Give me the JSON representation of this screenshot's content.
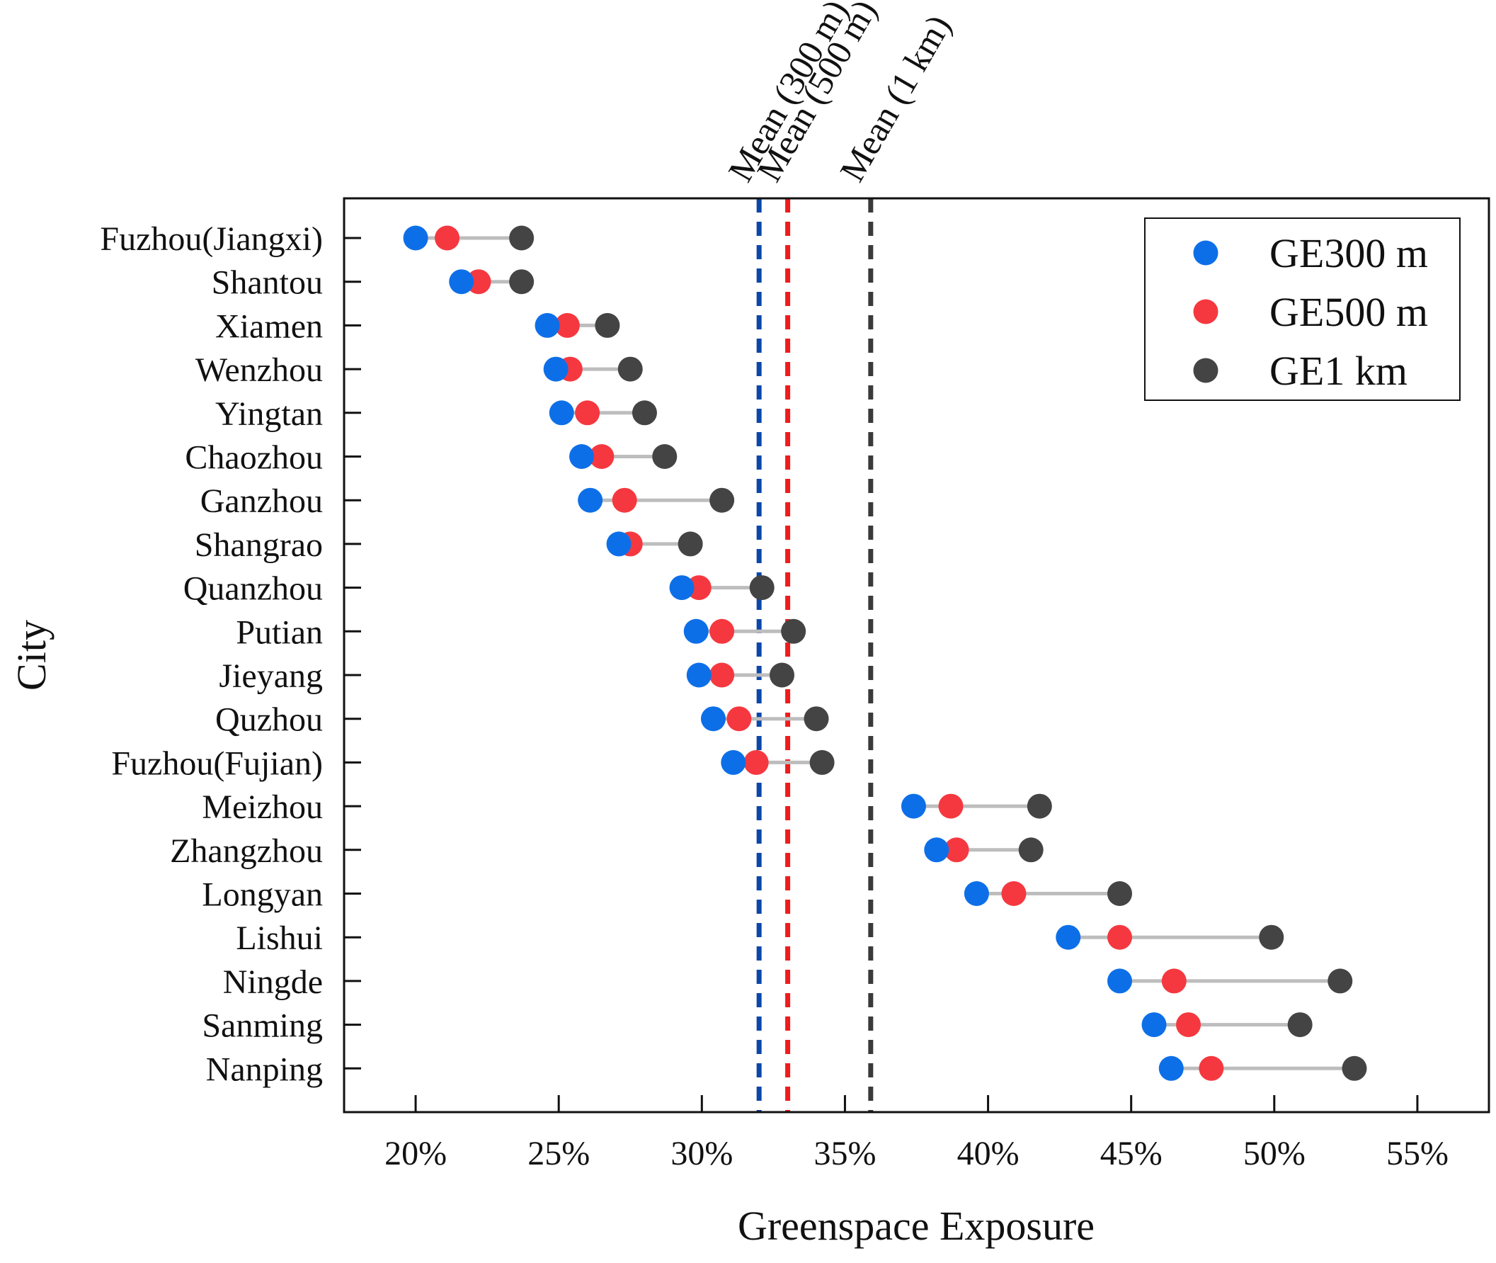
{
  "chart_data": {
    "type": "dumbbell",
    "xlabel": "Greenspace Exposure",
    "ylabel": "City",
    "xlim": [
      17.5,
      57.5
    ],
    "x_ticks": [
      20,
      25,
      30,
      35,
      40,
      45,
      50,
      55
    ],
    "x_tick_labels": [
      "20%",
      "25%",
      "30%",
      "35%",
      "40%",
      "45%",
      "50%",
      "55%"
    ],
    "categories": [
      "Fuzhou(Jiangxi)",
      "Shantou",
      "Xiamen",
      "Wenzhou",
      "Yingtan",
      "Chaozhou",
      "Ganzhou",
      "Shangrao",
      "Quanzhou",
      "Putian",
      "Jieyang",
      "Quzhou",
      "Fuzhou(Fujian)",
      "Meizhou",
      "Zhangzhou",
      "Longyan",
      "Lishui",
      "Ningde",
      "Sanming",
      "Nanping"
    ],
    "series": [
      {
        "name": "GE300 m",
        "color": "#0d6fe8",
        "values": [
          20.0,
          21.6,
          24.6,
          24.9,
          25.1,
          25.8,
          26.1,
          27.1,
          29.3,
          29.8,
          29.9,
          30.4,
          31.1,
          37.4,
          38.2,
          39.6,
          42.8,
          44.6,
          45.8,
          46.4
        ]
      },
      {
        "name": "GE500 m",
        "color": "#f5383f",
        "values": [
          21.1,
          22.2,
          25.3,
          25.4,
          26.0,
          26.5,
          27.3,
          27.5,
          29.9,
          30.7,
          30.7,
          31.3,
          31.9,
          38.7,
          38.9,
          40.9,
          44.6,
          46.5,
          47.0,
          47.8
        ]
      },
      {
        "name": "GE1 km",
        "color": "#444444",
        "values": [
          23.7,
          23.7,
          26.7,
          27.5,
          28.0,
          28.7,
          30.7,
          29.6,
          32.1,
          33.2,
          32.8,
          34.0,
          34.2,
          41.8,
          41.5,
          44.6,
          49.9,
          52.3,
          50.9,
          52.8
        ]
      }
    ],
    "mean_lines": [
      {
        "label": "Mean (300 m)",
        "value": 32.0,
        "color": "#0b47a8"
      },
      {
        "label": "Mean (500 m)",
        "value": 33.0,
        "color": "#ee1c1c"
      },
      {
        "label": "Mean (1 km)",
        "value": 35.9,
        "color": "#3a3a3a"
      }
    ],
    "connector_color": "#bdbdbd",
    "legend_position": "top-right"
  }
}
